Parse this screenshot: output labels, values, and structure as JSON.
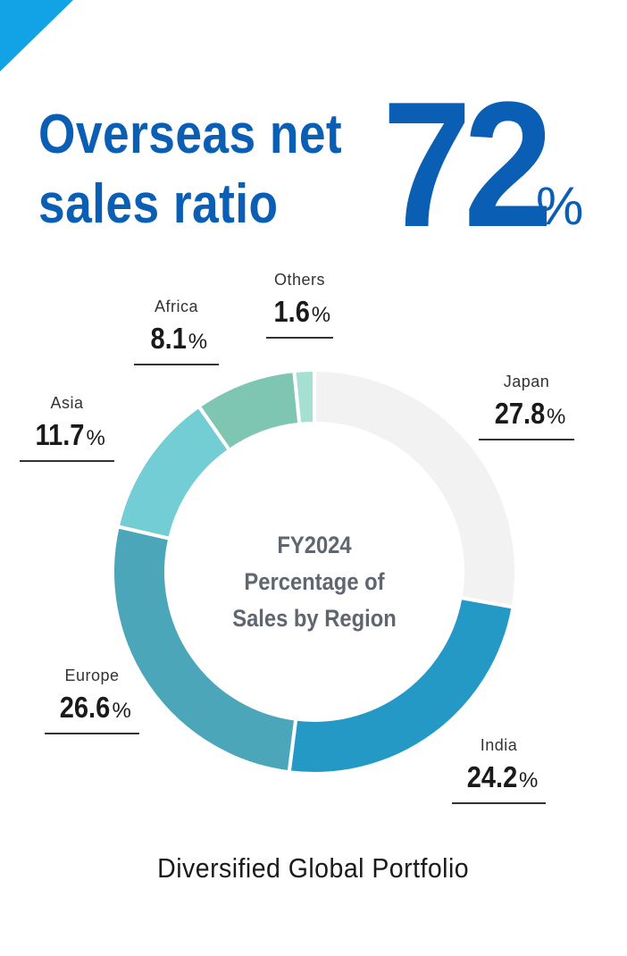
{
  "headline": {
    "line1": "Overseas net",
    "line2": "sales ratio",
    "ratio_value": "72",
    "ratio_unit": "%"
  },
  "chart_data": {
    "type": "pie",
    "title": "FY2024 Percentage of Sales by Region",
    "title_lines": [
      "FY2024",
      "Percentage of",
      "Sales by Region"
    ],
    "unit": "%",
    "slices": [
      {
        "name": "Japan",
        "value": 27.8,
        "color": "#f2f2f2"
      },
      {
        "name": "India",
        "value": 24.2,
        "color": "#2499c5"
      },
      {
        "name": "Europe",
        "value": 26.6,
        "color": "#4ca6b9"
      },
      {
        "name": "Asia",
        "value": 11.7,
        "color": "#72cdd4"
      },
      {
        "name": "Africa",
        "value": 8.1,
        "color": "#7fc6b2"
      },
      {
        "name": "Others",
        "value": 1.6,
        "color": "#a6e0d2"
      }
    ]
  },
  "labels": {
    "japan": {
      "name": "Japan",
      "value": "27.8",
      "unit": "%"
    },
    "india": {
      "name": "India",
      "value": "24.2",
      "unit": "%"
    },
    "europe": {
      "name": "Europe",
      "value": "26.6",
      "unit": "%"
    },
    "asia": {
      "name": "Asia",
      "value": "11.7",
      "unit": "%"
    },
    "africa": {
      "name": "Africa",
      "value": "8.1",
      "unit": "%"
    },
    "others": {
      "name": "Others",
      "value": "1.6",
      "unit": "%"
    }
  },
  "footer": {
    "text": "Diversified Global Portfolio"
  },
  "colors": {
    "brand_blue": "#0a5fb4",
    "corner_accent": "#12a3e6"
  }
}
